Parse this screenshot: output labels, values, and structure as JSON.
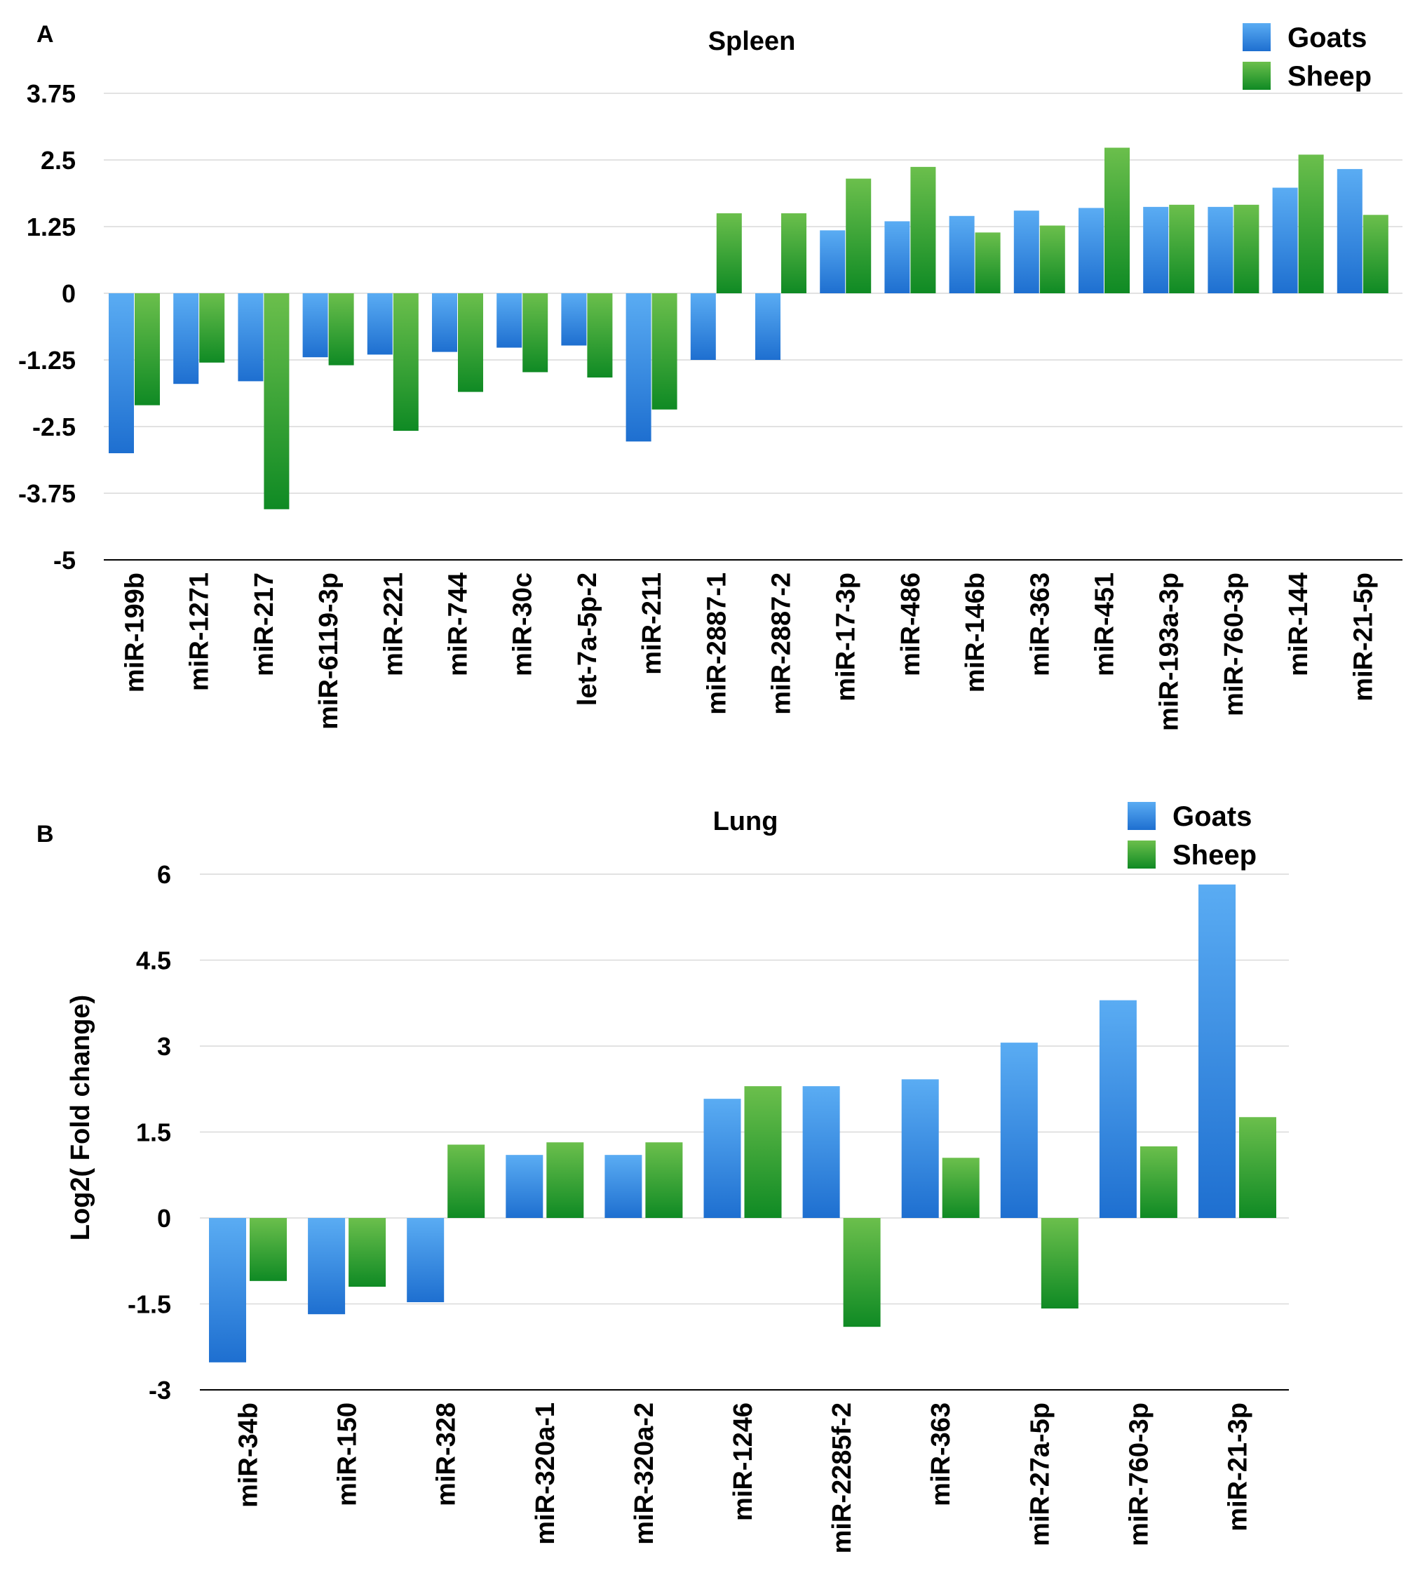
{
  "colors": {
    "goats_top": "#5aacf3",
    "goats_bottom": "#1e6fd0",
    "sheep_top": "#6bbf4c",
    "sheep_bottom": "#0f8a24",
    "gridline": "#d9d9d9",
    "axis": "#000000"
  },
  "chart_data": [
    {
      "panel": "A",
      "type": "bar",
      "title": "Spleen",
      "xlabel": "",
      "ylabel": "",
      "ylim": [
        -5,
        3.75
      ],
      "yticks": [
        "3.75",
        "2.5",
        "1.25",
        "0",
        "-1.25",
        "-2.5",
        "-3.75",
        "-5"
      ],
      "ytick_values": [
        3.75,
        2.5,
        1.25,
        0,
        -1.25,
        -2.5,
        -3.75,
        -5
      ],
      "legend_position": "top-right",
      "categories": [
        "miR-199b",
        "miR-1271",
        "miR-217",
        "miR-6119-3p",
        "miR-221",
        "miR-744",
        "miR-30c",
        "let-7a-5p-2",
        "miR-211",
        "miR-2887-1",
        "miR-2887-2",
        "miR-17-3p",
        "miR-486",
        "miR-146b",
        "miR-363",
        "miR-451",
        "miR-193a-3p",
        "miR-760-3p",
        "miR-144",
        "miR-21-5p"
      ],
      "series": [
        {
          "name": "Goats",
          "values": [
            -3.0,
            -1.7,
            -1.65,
            -1.2,
            -1.15,
            -1.1,
            -1.02,
            -0.98,
            -2.78,
            -1.25,
            -1.25,
            1.18,
            1.35,
            1.45,
            1.55,
            1.6,
            1.62,
            1.62,
            1.98,
            2.33
          ]
        },
        {
          "name": "Sheep",
          "values": [
            -2.1,
            -1.3,
            -4.05,
            -1.35,
            -2.58,
            -1.85,
            -1.48,
            -1.58,
            -2.18,
            1.5,
            1.5,
            2.15,
            2.37,
            1.14,
            1.27,
            2.73,
            1.66,
            1.66,
            2.6,
            1.47
          ]
        }
      ]
    },
    {
      "panel": "B",
      "type": "bar",
      "title": "Lung",
      "xlabel": "",
      "ylabel": "Log2( Fold change)",
      "ylim": [
        -3,
        6
      ],
      "yticks": [
        "6",
        "4.5",
        "3",
        "1.5",
        "0",
        "-1.5",
        "-3"
      ],
      "ytick_values": [
        6,
        4.5,
        3,
        1.5,
        0,
        -1.5,
        -3
      ],
      "legend_position": "top-right",
      "categories": [
        "miR-34b",
        "miR-150",
        "miR-328",
        "miR-320a-1",
        "miR-320a-2",
        "miR-1246",
        "miR-2285f-2",
        "miR-363",
        "miR-27a-5p",
        "miR-760-3p",
        "miR-21-3p"
      ],
      "series": [
        {
          "name": "Goats",
          "values": [
            -2.52,
            -1.68,
            -1.47,
            1.1,
            1.1,
            2.08,
            2.3,
            2.42,
            3.06,
            3.8,
            5.82
          ]
        },
        {
          "name": "Sheep",
          "values": [
            -1.1,
            -1.2,
            1.28,
            1.32,
            1.32,
            2.3,
            -1.9,
            1.05,
            -1.58,
            1.25,
            1.76
          ]
        }
      ]
    }
  ]
}
